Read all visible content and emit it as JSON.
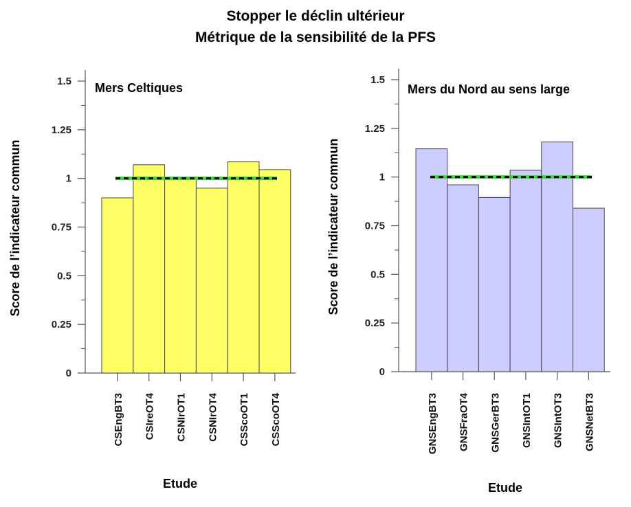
{
  "figure": {
    "title_line1": "Stopper le déclin ultérieur",
    "title_line2": "Métrique de la sensibilité de la PFS"
  },
  "chart_data": [
    {
      "type": "bar",
      "title": "Mers Celtiques",
      "xlabel": "Etude",
      "ylabel": "Score de l’indicateur commun",
      "categories": [
        "CSEngBT3",
        "CSIreOT4",
        "CSNIrOT1",
        "CSNIrOT4",
        "CSScoOT1",
        "CSScoOT4"
      ],
      "values": [
        0.9,
        1.07,
        1.0,
        0.95,
        1.085,
        1.045
      ],
      "ylim": [
        0,
        1.5
      ],
      "yticks": [
        0,
        0.25,
        0.5,
        0.75,
        1,
        1.25,
        1.5
      ],
      "ytick_labels": [
        "0",
        "0.25",
        "0.5",
        "0.75",
        "1",
        "1.25",
        "1.5"
      ],
      "reference_line": 1.0,
      "bar_color": "#ffff66",
      "grid": false
    },
    {
      "type": "bar",
      "title": "Mers du Nord au sens large",
      "xlabel": "Etude",
      "ylabel": "Score de l’indicateur commun",
      "categories": [
        "GNSEngBT3",
        "GNSFraOT4",
        "GNSGerBT3",
        "GNSIntOT1",
        "GNSIntOT3",
        "GNSNetBT3"
      ],
      "values": [
        1.145,
        0.96,
        0.895,
        1.035,
        1.18,
        0.84
      ],
      "ylim": [
        0,
        1.5
      ],
      "yticks": [
        0,
        0.25,
        0.5,
        0.75,
        1,
        1.25,
        1.5
      ],
      "ytick_labels": [
        "0",
        "0.25",
        "0.5",
        "0.75",
        "1",
        "1.25",
        "1.5"
      ],
      "reference_line": 1.0,
      "bar_color": "#ccccff",
      "grid": false
    }
  ],
  "style": {
    "bar_stroke": "#444444",
    "reference_green": "#33dd33",
    "reference_dash": "#000000"
  }
}
